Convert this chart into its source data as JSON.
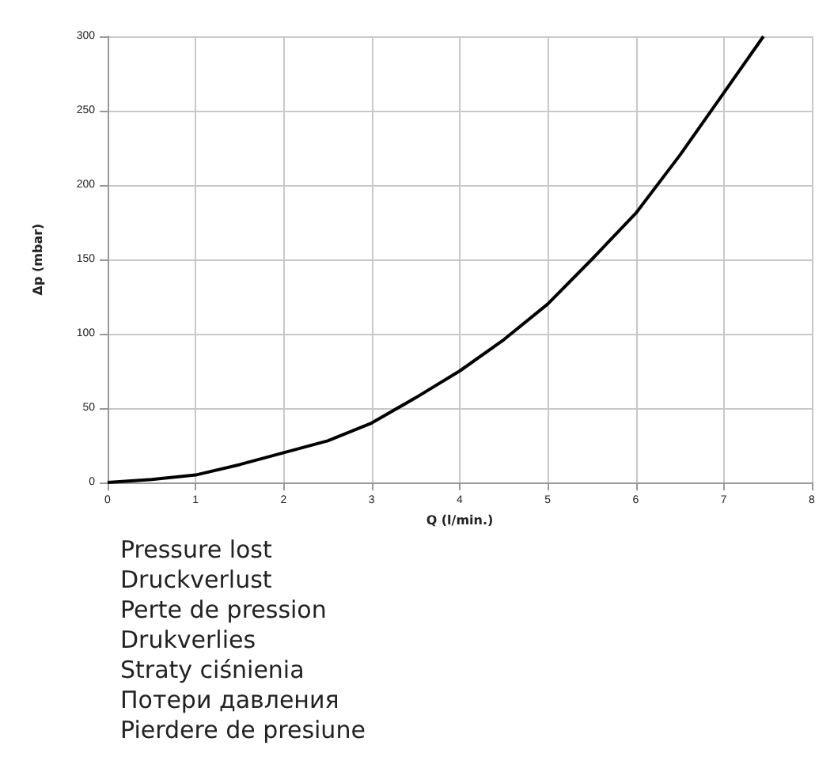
{
  "chart_data": {
    "type": "line",
    "xlabel": "Q (l/min.)",
    "ylabel": "Δp (mbar)",
    "x": [
      0,
      0.5,
      1,
      1.5,
      2,
      2.5,
      3,
      3.5,
      4,
      4.5,
      5,
      5.5,
      6,
      6.5,
      7,
      7.45
    ],
    "series": [
      {
        "color": "#000000",
        "values": [
          0,
          2,
          5,
          12,
          20,
          28,
          40,
          57,
          75,
          96,
          120,
          150,
          181,
          220,
          262,
          300
        ]
      }
    ],
    "xlim": [
      0,
      8
    ],
    "xticks": [
      0,
      1,
      2,
      3,
      4,
      5,
      6,
      7,
      8
    ],
    "ylim": [
      0,
      300
    ],
    "yticks": [
      0,
      50,
      100,
      150,
      200,
      250,
      300
    ],
    "grid": true,
    "marker": "none",
    "line_style": "solid",
    "annotations": [
      "Pressure lost",
      "Druckverlust",
      "Perte de pression",
      "Drukverlies",
      "Straty ciśnienia",
      "Потери давления",
      "Pierdere de presiune"
    ]
  }
}
